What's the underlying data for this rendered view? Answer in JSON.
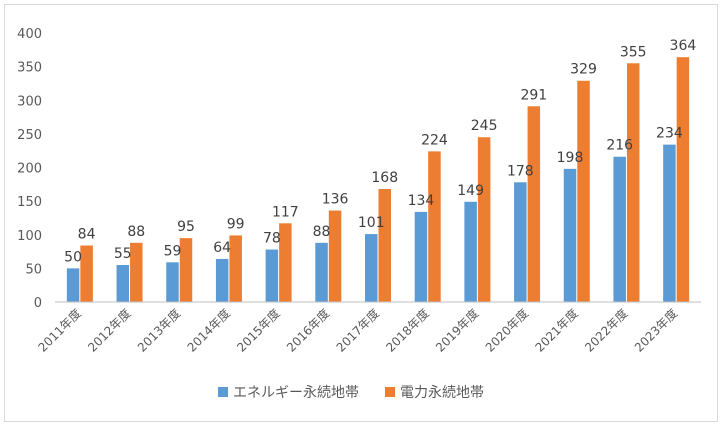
{
  "chart_data": {
    "type": "bar",
    "categories": [
      "2011年度",
      "2012年度",
      "2013年度",
      "2014年度",
      "2015年度",
      "2016年度",
      "2017年度",
      "2018年度",
      "2019年度",
      "2020年度",
      "2021年度",
      "2022年度",
      "2023年度"
    ],
    "series": [
      {
        "name": "エネルギー永続地帯",
        "color": "#5b9bd5",
        "values": [
          50,
          55,
          59,
          64,
          78,
          88,
          101,
          134,
          149,
          178,
          198,
          216,
          234
        ]
      },
      {
        "name": "電力永続地帯",
        "color": "#ed7d31",
        "values": [
          84,
          88,
          95,
          99,
          117,
          136,
          168,
          224,
          245,
          291,
          329,
          355,
          364
        ]
      }
    ],
    "ylim": [
      0,
      400
    ],
    "yticks": [
      0,
      50,
      100,
      150,
      200,
      250,
      300,
      350,
      400
    ],
    "title": "",
    "xlabel": "",
    "ylabel": "",
    "grid": false,
    "legend_position": "bottom"
  }
}
